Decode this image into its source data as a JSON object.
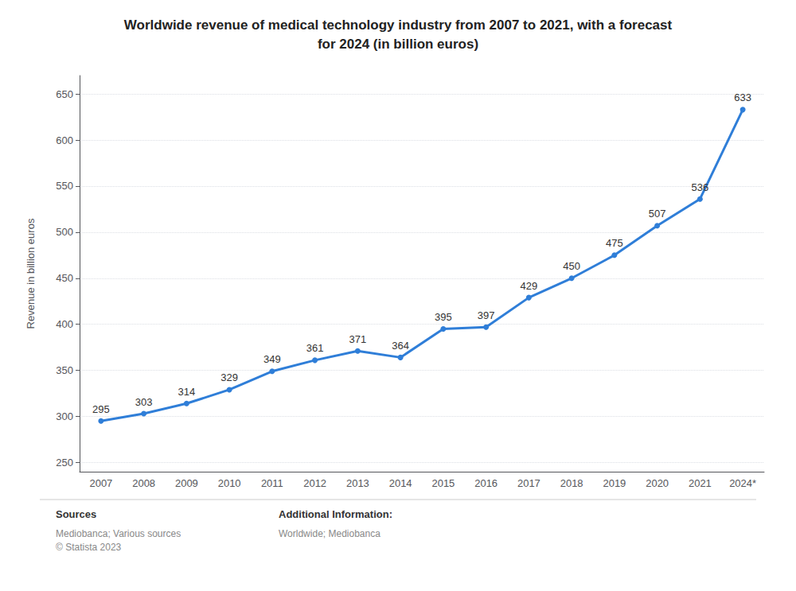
{
  "chart_data": {
    "type": "line",
    "title": "Worldwide revenue of medical technology industry from 2007 to 2021, with a forecast\nfor 2024 (in billion euros)",
    "ylabel": "Revenue in billion euros",
    "categories": [
      "2007",
      "2008",
      "2009",
      "2010",
      "2011",
      "2012",
      "2013",
      "2014",
      "2015",
      "2016",
      "2017",
      "2018",
      "2019",
      "2020",
      "2021",
      "2024*"
    ],
    "values": [
      295,
      303,
      314,
      329,
      349,
      361,
      371,
      364,
      395,
      397,
      429,
      450,
      475,
      507,
      536,
      633
    ],
    "color": "#2f7ed8",
    "ylim": [
      240,
      670
    ],
    "yticks": [
      250,
      300,
      350,
      400,
      450,
      500,
      550,
      600,
      650
    ],
    "grid": true,
    "data_labels": true,
    "marker": "circle",
    "annotations": [
      "Sources",
      "Mediobanca; Various sources\n© Statista 2023",
      "Additional Information:",
      "Worldwide; Mediobanca"
    ]
  }
}
